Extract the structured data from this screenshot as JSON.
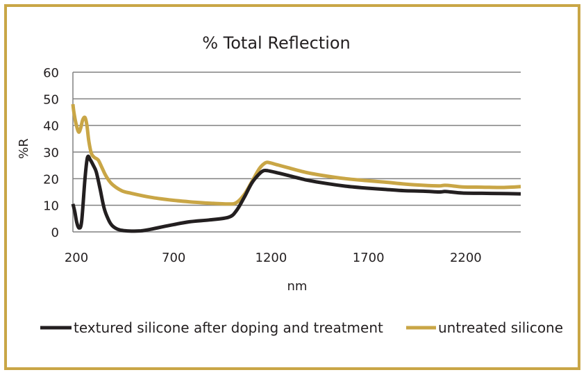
{
  "chart_data": {
    "type": "line",
    "title": "% Total Reflection",
    "xlabel": "nm",
    "ylabel": "%R",
    "xlim": [
      200,
      2500
    ],
    "ylim": [
      0,
      60
    ],
    "xticks": [
      200,
      700,
      1200,
      1700,
      2200
    ],
    "yticks": [
      0,
      10,
      20,
      30,
      40,
      50,
      60
    ],
    "grid": "horizontal",
    "legend": "bottom",
    "colors": {
      "border": "#c9a646",
      "grid": "#808080",
      "axis": "#808080"
    },
    "series": [
      {
        "name": "textured silicone after doping and treatment",
        "color": "#231f20",
        "x": [
          200,
          210,
          220,
          232,
          245,
          262,
          275,
          290,
          305,
          320,
          340,
          360,
          380,
          400,
          430,
          460,
          500,
          550,
          600,
          700,
          800,
          900,
          1000,
          1040,
          1080,
          1120,
          1160,
          1180,
          1200,
          1250,
          1300,
          1400,
          1500,
          1600,
          1700,
          1800,
          1900,
          2000,
          2080,
          2110,
          2140,
          2200,
          2300,
          2400,
          2500
        ],
        "y": [
          10.5,
          7.5,
          3.5,
          1.5,
          4,
          20,
          28,
          27,
          25,
          22.5,
          16,
          9,
          5,
          2.5,
          1,
          0.5,
          0.3,
          0.4,
          1,
          2.5,
          3.8,
          4.5,
          5.5,
          8,
          13,
          18.5,
          22,
          23,
          23,
          22.2,
          21.3,
          19.5,
          18.2,
          17.2,
          16.5,
          16,
          15.5,
          15.3,
          15,
          15.2,
          15,
          14.6,
          14.5,
          14.4,
          14.3
        ]
      },
      {
        "name": "untreated silicone",
        "color": "#c9a646",
        "x": [
          200,
          205,
          212,
          220,
          230,
          240,
          250,
          262,
          272,
          282,
          295,
          310,
          330,
          350,
          370,
          400,
          450,
          500,
          600,
          700,
          800,
          900,
          1000,
          1040,
          1080,
          1120,
          1160,
          1190,
          1210,
          1250,
          1300,
          1400,
          1500,
          1600,
          1700,
          1800,
          1900,
          2000,
          2080,
          2110,
          2150,
          2200,
          2300,
          2400,
          2500
        ],
        "y": [
          48,
          45,
          42,
          39.5,
          37.5,
          39,
          42,
          43,
          40,
          34,
          29.5,
          28,
          27,
          24,
          21,
          18,
          15.5,
          14.5,
          13,
          12,
          11.3,
          10.8,
          10.5,
          11,
          14,
          19,
          24,
          26,
          26,
          25.2,
          24.2,
          22.3,
          21,
          20,
          19.3,
          18.7,
          18,
          17.5,
          17.3,
          17.5,
          17.3,
          16.9,
          16.8,
          16.7,
          17
        ]
      }
    ]
  }
}
